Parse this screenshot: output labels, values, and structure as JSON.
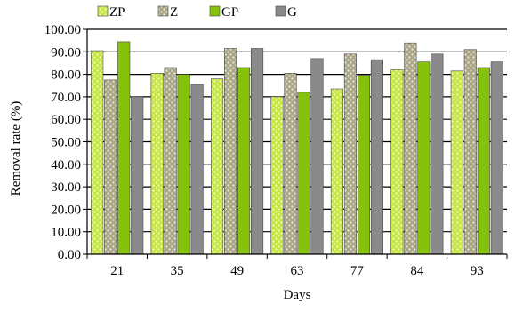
{
  "chart_data": {
    "type": "bar",
    "title": "",
    "xlabel": "Days",
    "ylabel": "Removal rate (%)",
    "ylim": [
      0,
      100
    ],
    "yticks": [
      "0.00",
      "10.00",
      "20.00",
      "30.00",
      "40.00",
      "50.00",
      "60.00",
      "70.00",
      "80.00",
      "90.00",
      "100.00"
    ],
    "categories": [
      "21",
      "35",
      "49",
      "63",
      "77",
      "84",
      "93"
    ],
    "series": [
      {
        "name": "ZP",
        "values": [
          90.5,
          80.5,
          78.0,
          70.0,
          73.5,
          82.0,
          81.5
        ]
      },
      {
        "name": "Z",
        "values": [
          77.5,
          83.0,
          91.5,
          80.5,
          89.0,
          94.0,
          91.0
        ]
      },
      {
        "name": "GP",
        "values": [
          94.5,
          80.0,
          83.0,
          72.0,
          79.5,
          85.5,
          83.0
        ]
      },
      {
        "name": "G",
        "values": [
          70.0,
          75.5,
          91.5,
          87.0,
          86.5,
          89.0,
          85.5
        ]
      }
    ],
    "grid": true,
    "legend_position": "top",
    "colors": {
      "ZP": "#c6e646",
      "Z": "#b8b497",
      "GP": "#86c20c",
      "G": "#8a8a8a"
    }
  }
}
